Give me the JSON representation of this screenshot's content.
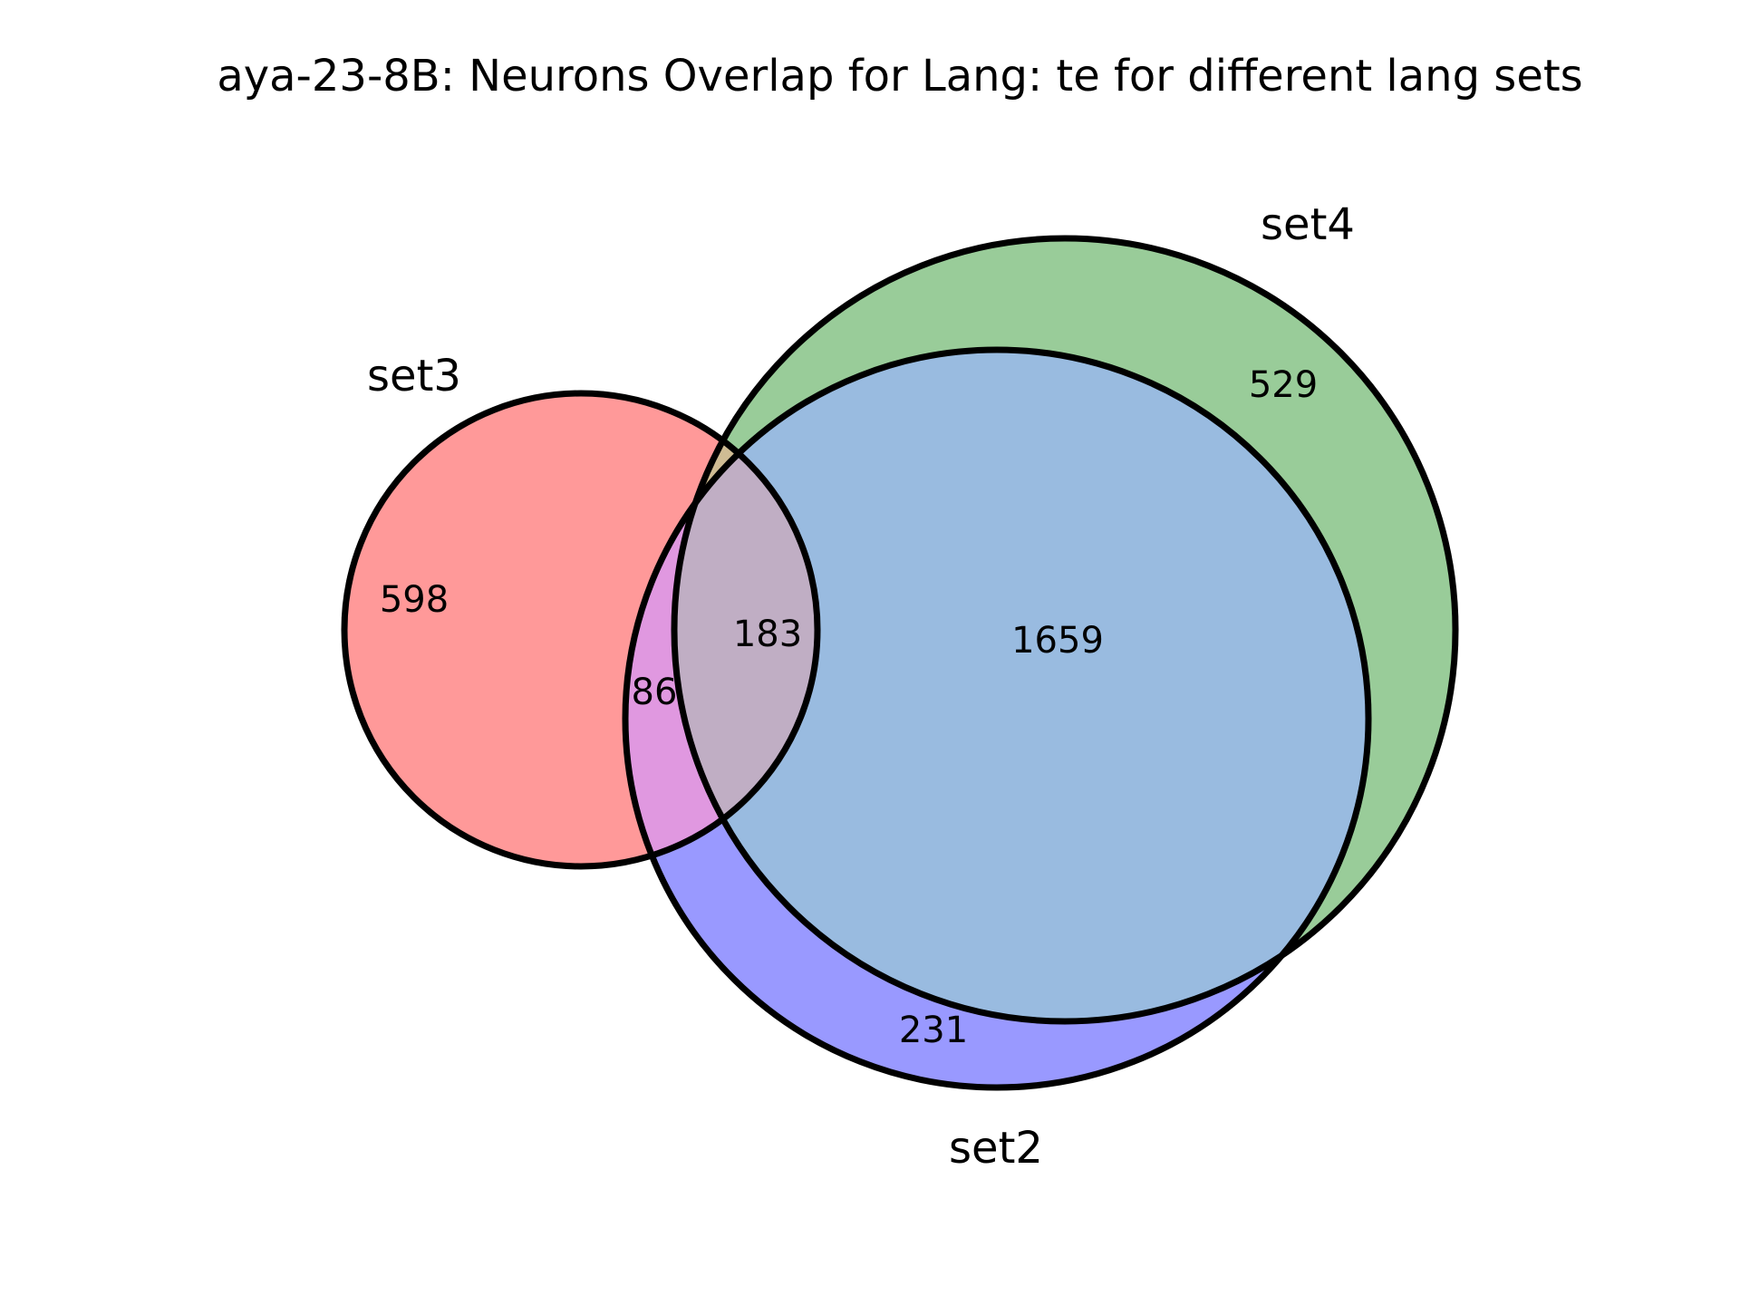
{
  "chart_data": {
    "type": "venn",
    "title": "aya-23-8B: Neurons Overlap for Lang: te for different lang sets",
    "sets": [
      {
        "name": "set3",
        "color": "#ff9999"
      },
      {
        "name": "set4",
        "color": "#99cc99"
      },
      {
        "name": "set2",
        "color": "#9999ff"
      }
    ],
    "regions": {
      "set3_only": 598,
      "set4_only": 529,
      "set2_only": 231,
      "set2_set3": 86,
      "set3_set4_set2": 183,
      "set4_set2": 1659
    },
    "overlap_colors": {
      "set3_set2": "#e098e0",
      "set3_set4": "#cfbc94",
      "set4_set2": "#99bbe0",
      "all": "#c0aec4"
    }
  }
}
